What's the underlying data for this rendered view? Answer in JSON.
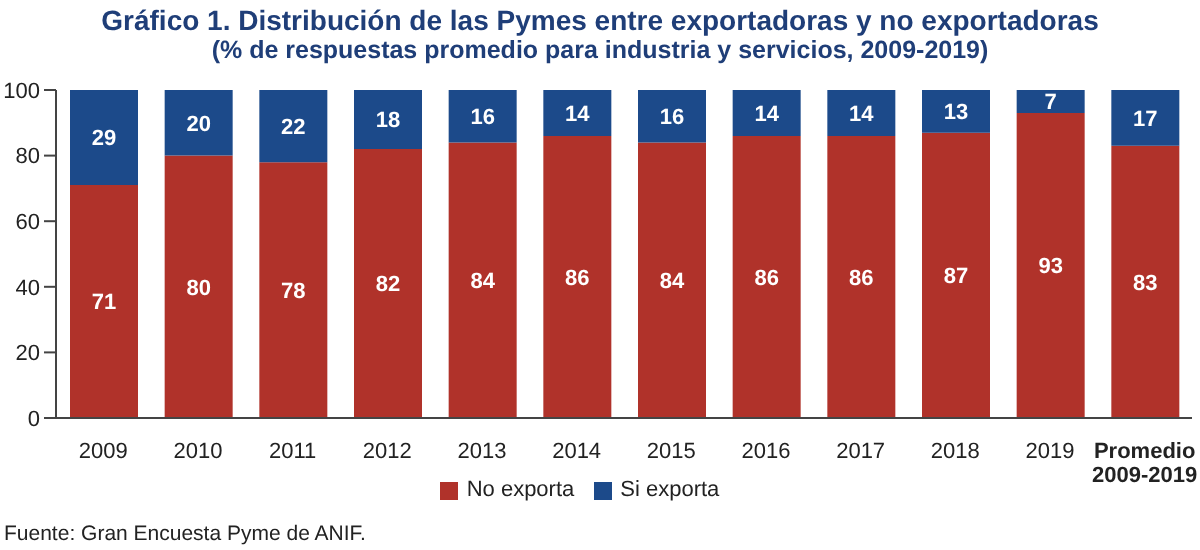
{
  "chart_data": {
    "type": "bar",
    "title": "Gráfico 1. Distribución de las Pymes entre exportadoras y no exportadoras",
    "subtitle": "(% de respuestas promedio para industria y servicios, 2009-2019)",
    "categories": [
      "2009",
      "2010",
      "2011",
      "2012",
      "2013",
      "2014",
      "2015",
      "2016",
      "2017",
      "2018",
      "2019",
      "Promedio\n2009-2019"
    ],
    "series": [
      {
        "name": "No exporta",
        "color": "#b0322a",
        "values": [
          71,
          80,
          78,
          82,
          84,
          86,
          84,
          86,
          86,
          87,
          93,
          83
        ]
      },
      {
        "name": "Si exporta",
        "color": "#1c4a8a",
        "values": [
          29,
          20,
          22,
          18,
          16,
          14,
          16,
          14,
          14,
          13,
          7,
          17
        ]
      }
    ],
    "stacked": true,
    "ylim": [
      0,
      100
    ],
    "yticks": [
      0,
      20,
      40,
      60,
      80,
      100
    ],
    "data_labels": true,
    "legend": "bottom",
    "grid": false,
    "annotations": [
      "Fuente: Gran Encuesta Pyme de ANIF."
    ]
  }
}
